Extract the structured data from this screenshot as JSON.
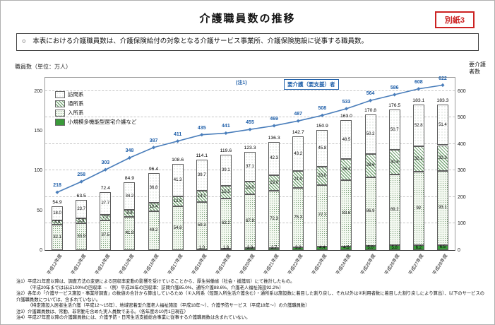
{
  "page": {
    "title": "介護職員数の推移",
    "badge": "別紙3",
    "subtitle": "○　本表における介護職員数は、介護保険給付の対象となる介護サービス事業所、介護保険施設に従事する職員数。"
  },
  "chart_data": {
    "type": "bar",
    "subtype": "stacked-bars-with-line",
    "unit": "万人",
    "categories": [
      "平成12年度",
      "平成13年度",
      "平成14年度",
      "平成15年度",
      "平成16年度",
      "平成17年度",
      "平成18年度",
      "平成19年度",
      "平成20年度",
      "平成21年度",
      "平成22年度",
      "平成23年度",
      "平成24年度",
      "平成25年度",
      "平成26年度",
      "平成27年度",
      "平成28年度"
    ],
    "series": [
      {
        "name": "訪問系",
        "values": [
          18.0,
          23.7,
          27.7,
          34.2,
          36.8,
          41.3,
          39.7,
          39.1,
          37.1,
          42.3,
          43.2,
          45.8,
          48.5,
          50.2,
          50.7,
          52.8,
          51.4
        ],
        "labels": [
          "18.0",
          "23.7",
          "27.7",
          "34.2",
          "36.8",
          "41.3",
          "39.7",
          "39.1",
          "37.1",
          "42.3",
          "43.2",
          "45.8",
          "48.5",
          "50.2",
          "50.7",
          "52.8",
          "51.4"
        ]
      },
      {
        "name": "通所系",
        "values": [
          4.8,
          5.9,
          7.2,
          8.8,
          10.4,
          12.5,
          14.1,
          15.5,
          16.0,
          19.0,
          21.0,
          23.0,
          26.4,
          28.6,
          30.8,
          32.1,
          32.3
        ],
        "labels": [
          "4.8",
          "5.9",
          "7.2",
          "8.8",
          "10.4",
          "12.5",
          "14.1",
          "15.5",
          "16.0",
          "19.0",
          "21.0",
          "23.0",
          "26.4",
          "28.6",
          "30.8",
          "32.1",
          "32.3"
        ]
      },
      {
        "name": "入所系",
        "values": [
          32.1,
          33.9,
          37.5,
          41.9,
          49.2,
          54.8,
          59.3,
          63.2,
          67.9,
          72.3,
          75.3,
          77.7,
          83.6,
          86.9,
          89.2,
          92.0,
          93.1
        ],
        "labels": [
          "32.1",
          "33.9",
          "37.5",
          "41.9",
          "49.2",
          "54.8",
          "59.3",
          "63.2",
          "67.9",
          "72.3",
          "75.3",
          "77.7",
          "83.6",
          "86.9",
          "89.2",
          "92",
          "93.1"
        ]
      },
      {
        "name": "小規模多機能型居宅介護など",
        "values": [
          0,
          0,
          0,
          0,
          0,
          0,
          1.0,
          1.8,
          2.3,
          2.7,
          3.2,
          4.4,
          4.5,
          5.0,
          5.8,
          6.2,
          6.5
        ],
        "labels": [
          "",
          "",
          "",
          "",
          "",
          "",
          "1.0",
          "1.8",
          "2.3",
          "2.7",
          "3.2",
          "4.4",
          "4.5",
          "5.0",
          "5.8",
          "6.2",
          "6.5"
        ]
      }
    ],
    "totals": {
      "values": [
        54.9,
        63.5,
        72.4,
        84.9,
        96.4,
        108.6,
        114.1,
        119.6,
        123.3,
        136.3,
        142.7,
        150.9,
        163.0,
        170.8,
        176.5,
        183.1,
        183.3
      ],
      "labels": [
        "54.9",
        "63.5",
        "72.4",
        "84.9",
        "96.4",
        "108.6",
        "114.1",
        "119.6",
        "123.3",
        "136.3",
        "142.7",
        "150.9",
        "163.0",
        "170.8",
        "176.5",
        "183.1",
        "183.3"
      ]
    },
    "line_series": {
      "name": "要介護(要支援)者",
      "values": [
        218,
        258,
        303,
        348,
        387,
        411,
        435,
        441,
        455,
        469,
        487,
        508,
        533,
        564,
        586,
        608,
        622
      ],
      "labels": [
        "218",
        "258",
        "303",
        "348",
        "387",
        "411",
        "435",
        "441",
        "455",
        "469",
        "487",
        "508",
        "533",
        "564",
        "586",
        "608",
        "622"
      ]
    },
    "left_axis": {
      "title": "職員数（単位：万人）",
      "ticks": [
        0,
        50,
        100,
        150,
        200
      ],
      "max": 216.7
    },
    "right_axis": {
      "title": "要介護者数",
      "ticks": [
        0,
        100,
        200,
        300,
        400,
        500,
        600
      ],
      "max": 650
    },
    "legend": [
      "訪問系",
      "通所系",
      "入所系",
      "小規模多機能型居宅介護など"
    ],
    "annotations": {
      "note_ref": "(注1)",
      "line_label": "要介護（要支援）者"
    },
    "grid": "dashed-horizontal",
    "legend_position": "top-left-inside"
  },
  "notes": [
    {
      "text": "注1）平成21年度以降は、調査方法の変更による回収率変動の影響を受けていることから、厚生労働省（社会・援護局）にて推計したもの。",
      "indent": false
    },
    {
      "text": "（平成20年まではほぼ100%の回収率 →（例）平成28年の回収率：訪問介護85.0%、通所介護88.6%、介護老人福祉施設92.2%）",
      "indent": true
    },
    {
      "text": "注2）各年の「介護サービス施設・事業所調査」の数値の合計から算出しているため（①入所系（短期入所生活介護含む）・通所系は施設数に着目した割り戻し、それ以外は②利用者数に着目した割り戻しにより算出）、以下のサービスの介護職員数については、含まれていない。",
      "indent": false
    },
    {
      "text": "（特定施設入居者生活介護（平成12〜15年）、地域密着型介護老人福祉施設（平成18年〜）、介護予防サービス（平成18年〜）の介護職員数）",
      "indent": true
    },
    {
      "text": "注3）介護職員数は、常勤、非常勤を含めた実人員数である。（各年度の10月1日現在）",
      "indent": false
    },
    {
      "text": "注4）平成27年度以降の介護職員数には、介護予防・日常生活支援総合事業に従事する介護職員数は含まれていない。",
      "indent": false
    }
  ],
  "colors": {
    "line": "#4a7ebb",
    "line_label": "#1f5fa9",
    "badge_red": "#cc2222",
    "bar_solid_green": "#3a9a3a",
    "grid": "#c4c4c4"
  }
}
